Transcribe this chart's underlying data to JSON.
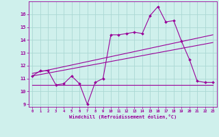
{
  "xlabel": "Windchill (Refroidissement éolien,°C)",
  "bg_color": "#cff0ec",
  "grid_color": "#aad8d3",
  "line_color": "#990099",
  "xlim": [
    -0.5,
    23.5
  ],
  "ylim": [
    8.8,
    17.0
  ],
  "yticks": [
    9,
    10,
    11,
    12,
    13,
    14,
    15,
    16
  ],
  "xticks": [
    0,
    1,
    2,
    3,
    4,
    5,
    6,
    7,
    8,
    9,
    10,
    11,
    12,
    13,
    14,
    15,
    16,
    17,
    18,
    19,
    20,
    21,
    22,
    23
  ],
  "series1_x": [
    0,
    1,
    2,
    3,
    4,
    5,
    6,
    7,
    8,
    9,
    10,
    11,
    12,
    13,
    14,
    15,
    16,
    17,
    18,
    19,
    20,
    21,
    22,
    23
  ],
  "series1_y": [
    11.2,
    11.6,
    11.6,
    10.5,
    10.6,
    11.2,
    10.6,
    9.0,
    10.7,
    11.0,
    14.4,
    14.4,
    14.5,
    14.6,
    14.5,
    15.9,
    16.6,
    15.4,
    15.5,
    13.9,
    12.5,
    10.8,
    10.7,
    10.7
  ],
  "series2_x": [
    0,
    23
  ],
  "series2_y": [
    11.2,
    13.8
  ],
  "series3_x": [
    0,
    23
  ],
  "series3_y": [
    11.4,
    14.4
  ],
  "series4_x": [
    0,
    22,
    23
  ],
  "series4_y": [
    10.5,
    10.5,
    10.5
  ]
}
